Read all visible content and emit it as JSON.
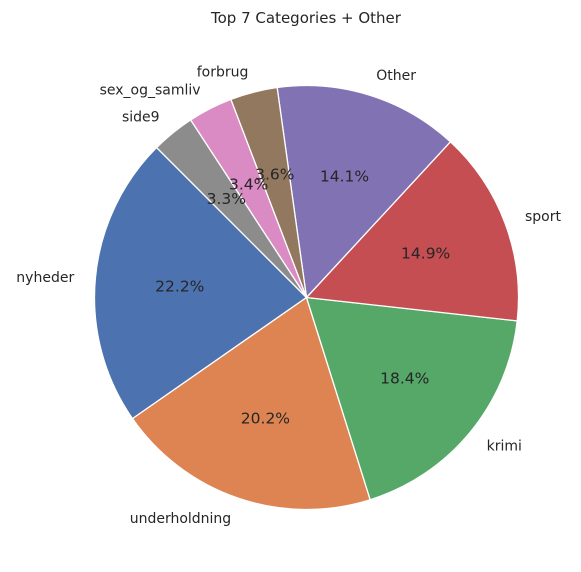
{
  "chart_data": {
    "type": "pie",
    "title": "Top 7 Categories + Other",
    "start_angle_deg": 135,
    "direction": "counterclockwise",
    "slices": [
      {
        "label": "nyheder",
        "value": 22.2,
        "pct_label": "22.2%",
        "color": "#4c72b0"
      },
      {
        "label": "underholdning",
        "value": 20.2,
        "pct_label": "20.2%",
        "color": "#dd8452"
      },
      {
        "label": "krimi",
        "value": 18.4,
        "pct_label": "18.4%",
        "color": "#55a868"
      },
      {
        "label": "sport",
        "value": 14.9,
        "pct_label": "14.9%",
        "color": "#c44e52"
      },
      {
        "label": "Other",
        "value": 14.1,
        "pct_label": "14.1%",
        "color": "#8172b3"
      },
      {
        "label": "forbrug",
        "value": 3.6,
        "pct_label": "3.6%",
        "color": "#937860"
      },
      {
        "label": "sex_og_samliv",
        "value": 3.4,
        "pct_label": "3.4%",
        "color": "#da8bc3"
      },
      {
        "label": "side9",
        "value": 3.3,
        "pct_label": "3.3%",
        "color": "#8c8c8c"
      }
    ]
  }
}
